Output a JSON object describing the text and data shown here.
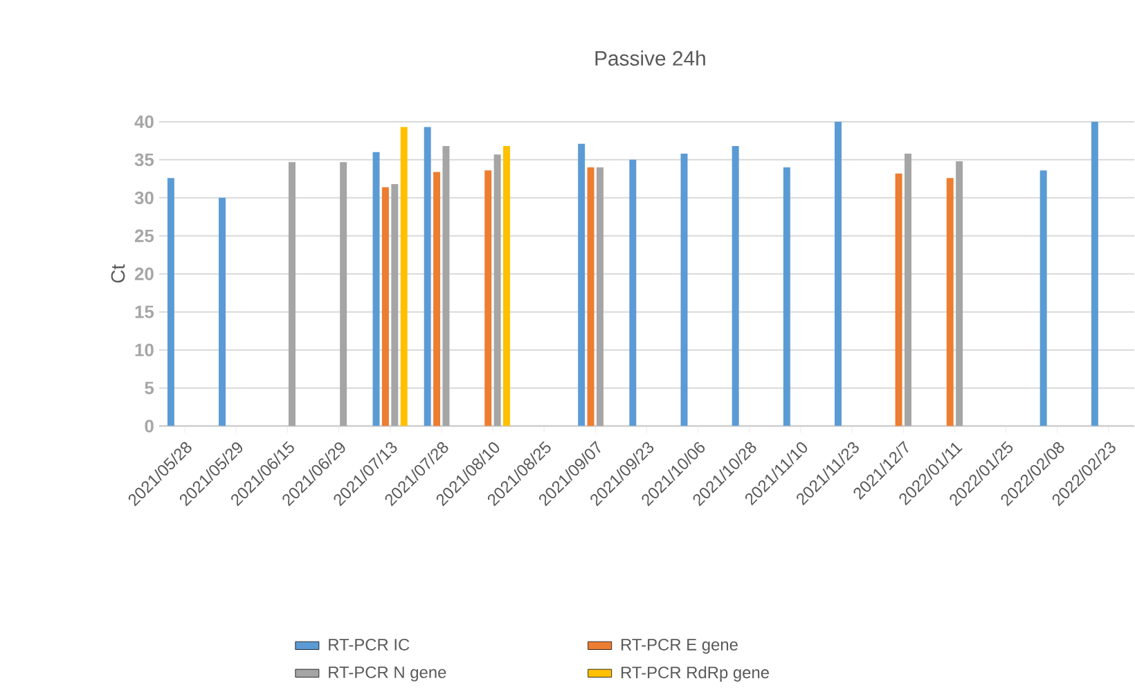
{
  "chart_data": {
    "type": "bar",
    "title": "Passive 24h",
    "ylabel": "Ct",
    "categories": [
      "2021/05/28",
      "2021/05/29",
      "2021/06/15",
      "2021/06/29",
      "2021/07/13",
      "2021/07/28",
      "2021/08/10",
      "2021/08/25",
      "2021/09/07",
      "2021/09/23",
      "2021/10/06",
      "2021/10/28",
      "2021/11/10",
      "2021/11/23",
      "2021/12/7",
      "2022/01/11",
      "2022/01/25",
      "2022/02/08",
      "2022/02/23"
    ],
    "series": [
      {
        "name": "RT-PCR IC",
        "color": "#5b9bd5",
        "values": [
          32.6,
          30,
          null,
          null,
          36,
          39.3,
          null,
          null,
          37.1,
          35,
          35.8,
          36.8,
          34,
          40,
          null,
          null,
          null,
          33.6,
          40
        ]
      },
      {
        "name": "RT-PCR E gene",
        "color": "#ed7d31",
        "values": [
          null,
          null,
          null,
          null,
          31.4,
          33.4,
          33.6,
          null,
          34,
          null,
          null,
          null,
          null,
          null,
          33.2,
          32.6,
          null,
          null,
          null
        ]
      },
      {
        "name": "RT-PCR N gene",
        "color": "#a5a5a5",
        "values": [
          null,
          null,
          34.7,
          34.7,
          31.8,
          36.8,
          35.7,
          null,
          34,
          null,
          null,
          null,
          null,
          null,
          35.8,
          34.8,
          null,
          null,
          null
        ]
      },
      {
        "name": "RT-PCR RdRp gene",
        "color": "#ffc000",
        "values": [
          null,
          null,
          null,
          null,
          39.3,
          null,
          36.8,
          null,
          null,
          null,
          null,
          null,
          null,
          null,
          null,
          null,
          null,
          null,
          null
        ]
      }
    ],
    "ylim": [
      0,
      40
    ],
    "yticks": [
      0,
      5,
      10,
      15,
      20,
      25,
      30,
      35,
      40
    ],
    "grid": "y",
    "legend": "bottom"
  }
}
